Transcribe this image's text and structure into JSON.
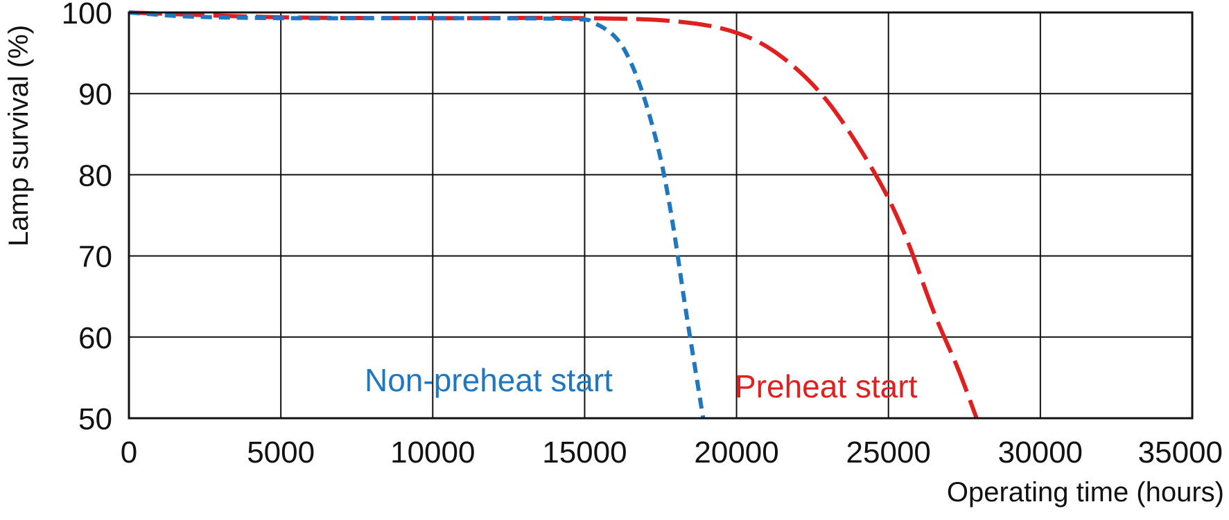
{
  "chart_data": {
    "type": "line",
    "title": "",
    "xlabel": "Operating time (hours)",
    "ylabel": "Lamp survival  (%)",
    "xlim": [
      0,
      35000
    ],
    "ylim": [
      50,
      100
    ],
    "x_ticks": [
      0,
      5000,
      10000,
      15000,
      20000,
      25000,
      30000,
      35000
    ],
    "y_ticks": [
      50,
      60,
      70,
      80,
      90,
      100
    ],
    "x_tick_labels": [
      "0",
      "5000",
      "10000",
      "15000",
      "20000",
      "25000",
      "30000",
      "35000"
    ],
    "y_tick_labels": [
      "50",
      "60",
      "70",
      "80",
      "90",
      "100"
    ],
    "grid": true,
    "series": [
      {
        "name": "Non-preheat start",
        "color": "#1f77c0",
        "line_style": "short-dash",
        "x": [
          0,
          2000,
          5000,
          10000,
          14500,
          15300,
          16000,
          16500,
          17000,
          17500,
          17900,
          18300,
          18600,
          18900
        ],
        "y": [
          100,
          99.5,
          99.3,
          99.3,
          99.2,
          98.7,
          97,
          94,
          89,
          82,
          74,
          64,
          57,
          50
        ]
      },
      {
        "name": "Preheat start",
        "color": "#e02020",
        "line_style": "long-dash",
        "x": [
          0,
          5000,
          10000,
          15000,
          18000,
          20000,
          21500,
          23000,
          24500,
          25500,
          26500,
          27300,
          27900
        ],
        "y": [
          100,
          99.4,
          99.3,
          99.3,
          98.9,
          97.5,
          94.5,
          89,
          80.5,
          73,
          63,
          56,
          50
        ]
      }
    ]
  }
}
